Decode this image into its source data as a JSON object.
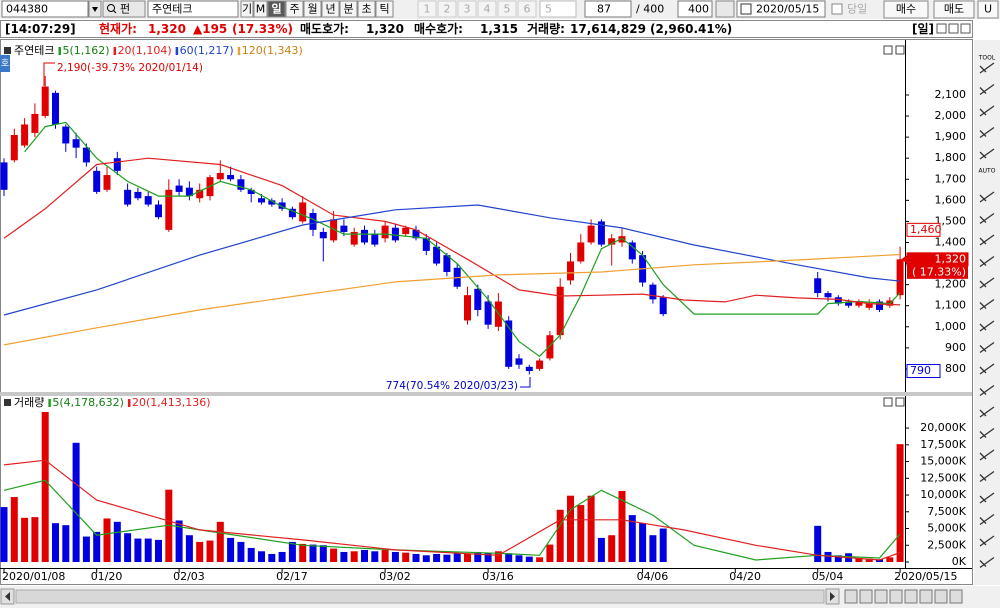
{
  "toolbar": {
    "code": "044380",
    "fund": "펀",
    "name": "주연테크",
    "period_buttons": [
      "기",
      "M",
      "일",
      "주",
      "월",
      "년",
      "분",
      "초",
      "틱"
    ],
    "number_buttons": [
      "1",
      "2",
      "3",
      "4",
      "5",
      "6"
    ],
    "interval": "5",
    "count": "87",
    "total": "/ 400",
    "max": "400",
    "date": "2020/05/15",
    "today": "당일",
    "buy": "매수",
    "sell": "매도",
    "user": "U"
  },
  "info_bar": {
    "time": "[14:07:29]",
    "price_label": "현재가:",
    "price": "1,320",
    "change": "▲195",
    "change_rate": "(17.33%)",
    "ask_label": "매도호가:",
    "ask": "1,320",
    "bid_label": "매수호가:",
    "bid": "1,315",
    "volume_label": "거래량:",
    "volume": "17,614,829",
    "volume_rate": "(2,960.41%)",
    "period": "[일]"
  },
  "side_tab": "호",
  "tool_bar": {
    "tool": "TOOL",
    "auto": "AUTO"
  },
  "chart_data": [
    {
      "type": "candlestick",
      "name": "주연테크",
      "up_color": "#e00000",
      "down_color": "#0000e0",
      "open": [
        1780,
        1790,
        1860,
        1920,
        2000,
        2110,
        1950,
        1890,
        1850,
        1740,
        1650,
        1800,
        1650,
        1640,
        1620,
        1580,
        1460,
        1670,
        1660,
        1610,
        1620,
        1700,
        1720,
        1700,
        1650,
        1610,
        1600,
        1590,
        1560,
        1500,
        1540,
        1450,
        1410,
        1480,
        1390,
        1460,
        1440,
        1420,
        1470,
        1440,
        1460,
        1420,
        1380,
        1340,
        1280,
        1030,
        1180,
        1120,
        1000,
        1030,
        850,
        810,
        800,
        850,
        960,
        1220,
        1310,
        1400,
        1500,
        1390,
        1400,
        1400,
        1340,
        1200,
        1140,
        null,
        null,
        null,
        null,
        null,
        null,
        null,
        null,
        null,
        null,
        null,
        null,
        null,
        null,
        1230,
        1160,
        1140,
        1120,
        1100,
        1090,
        1120,
        1100,
        1150
      ],
      "high": [
        1800,
        1940,
        1990,
        2060,
        2190,
        2120,
        1960,
        1920,
        1870,
        1760,
        1760,
        1830,
        1680,
        1660,
        1640,
        1600,
        1700,
        1700,
        1690,
        1680,
        1720,
        1790,
        1760,
        1720,
        1660,
        1630,
        1610,
        1610,
        1570,
        1620,
        1560,
        1470,
        1550,
        1510,
        1470,
        1480,
        1460,
        1500,
        1490,
        1480,
        1480,
        1440,
        1400,
        1350,
        1300,
        1190,
        1200,
        1150,
        1160,
        1050,
        870,
        820,
        850,
        980,
        1230,
        1350,
        1440,
        1510,
        1510,
        1440,
        1470,
        1410,
        1360,
        1210,
        1150,
        null,
        null,
        null,
        null,
        null,
        null,
        null,
        null,
        null,
        null,
        null,
        null,
        null,
        null,
        1260,
        1170,
        1150,
        1130,
        1130,
        1130,
        1130,
        1140,
        1380
      ],
      "low": [
        1620,
        1780,
        1850,
        1900,
        1990,
        1940,
        1830,
        1800,
        1760,
        1630,
        1640,
        1720,
        1570,
        1600,
        1570,
        1510,
        1450,
        1620,
        1600,
        1590,
        1600,
        1690,
        1690,
        1640,
        1590,
        1580,
        1570,
        1550,
        1510,
        1490,
        1430,
        1310,
        1400,
        1430,
        1380,
        1390,
        1380,
        1400,
        1400,
        1430,
        1410,
        1340,
        1290,
        1240,
        1180,
        1010,
        1050,
        990,
        980,
        800,
        800,
        774,
        790,
        840,
        940,
        1200,
        1300,
        1390,
        1380,
        1290,
        1380,
        1300,
        1190,
        1110,
        1050,
        null,
        null,
        null,
        null,
        null,
        null,
        null,
        null,
        null,
        null,
        null,
        null,
        null,
        null,
        1140,
        1120,
        1100,
        1090,
        1090,
        1080,
        1070,
        1090,
        1130
      ],
      "close": [
        1650,
        1910,
        1960,
        2010,
        2140,
        1960,
        1870,
        1850,
        1780,
        1640,
        1720,
        1740,
        1580,
        1610,
        1580,
        1520,
        1650,
        1640,
        1620,
        1650,
        1710,
        1730,
        1700,
        1650,
        1630,
        1590,
        1580,
        1560,
        1520,
        1590,
        1460,
        1420,
        1510,
        1450,
        1450,
        1400,
        1390,
        1480,
        1410,
        1470,
        1420,
        1360,
        1300,
        1260,
        1190,
        1150,
        1080,
        1010,
        1120,
        810,
        820,
        790,
        840,
        960,
        1190,
        1310,
        1400,
        1480,
        1390,
        1420,
        1430,
        1320,
        1210,
        1130,
        1060,
        null,
        null,
        null,
        null,
        null,
        null,
        null,
        null,
        null,
        null,
        null,
        null,
        null,
        null,
        1160,
        1140,
        1110,
        1100,
        1120,
        1110,
        1080,
        1125,
        1320
      ],
      "ylim": [
        700,
        2340
      ],
      "yticks": [
        800,
        900,
        {
          "value": 1000,
          "label": "1,000"
        },
        {
          "value": 1100,
          "label": "1,100"
        },
        {
          "value": 1200,
          "label": "1,200"
        },
        {
          "value": 1300,
          "label": "1,300"
        },
        {
          "value": 1400,
          "label": "1,400"
        },
        {
          "value": 1500,
          "label": "1,500"
        },
        {
          "value": 1600,
          "label": "1,600"
        },
        {
          "value": 1700,
          "label": "1,700"
        },
        {
          "value": 1800,
          "label": "1,800"
        },
        {
          "value": 1900,
          "label": "1,900"
        },
        {
          "value": 2000,
          "label": "2,000"
        },
        {
          "value": 2100,
          "label": "2,100"
        }
      ],
      "series": [
        {
          "name": "5(1,162)",
          "color": "#1ea01e",
          "x": [
            2,
            4,
            6,
            9,
            12,
            15,
            18,
            21,
            24,
            27,
            30,
            33,
            37,
            41,
            44,
            47,
            50,
            52,
            54,
            56,
            58,
            60,
            62,
            64,
            67,
            79,
            80,
            83,
            86,
            87
          ],
          "values": [
            1830,
            1950,
            1970,
            1800,
            1690,
            1620,
            1620,
            1690,
            1650,
            1570,
            1510,
            1440,
            1440,
            1420,
            1300,
            1130,
            930,
            860,
            960,
            1150,
            1370,
            1420,
            1340,
            1200,
            1060,
            1060,
            1110,
            1120,
            1110,
            1162
          ]
        },
        {
          "name": "20(1,104)",
          "color": "#e02020",
          "x": [
            0,
            4,
            9,
            14,
            21,
            27,
            32,
            37,
            40,
            45,
            50,
            54,
            58,
            62,
            66,
            70,
            73,
            77,
            81,
            84,
            87
          ],
          "values": [
            1420,
            1560,
            1770,
            1800,
            1770,
            1670,
            1530,
            1500,
            1460,
            1320,
            1175,
            1146,
            1150,
            1155,
            1127,
            1118,
            1150,
            1137,
            1130,
            1110,
            1104
          ]
        },
        {
          "name": "60(1,217)",
          "color": "#2244cc",
          "x": [
            0,
            9,
            19,
            29,
            38,
            46,
            53,
            60,
            67,
            77,
            84,
            87
          ],
          "values": [
            1056,
            1175,
            1340,
            1483,
            1555,
            1578,
            1517,
            1469,
            1388,
            1294,
            1232,
            1217
          ]
        },
        {
          "name": "120(1,343)",
          "color": "#f0a030",
          "x": [
            0,
            9,
            19,
            29,
            38,
            48,
            58,
            67,
            77,
            87
          ],
          "values": [
            914,
            995,
            1080,
            1151,
            1213,
            1246,
            1260,
            1294,
            1317,
            1343
          ]
        }
      ],
      "annotations": [
        "2,190(-39.73% 2020/01/14)",
        "774(70.54% 2020/03/23)"
      ],
      "markers": [
        {
          "value": 1460,
          "label": "1,460"
        },
        {
          "value": 1320,
          "label": "1,320"
        },
        790
      ],
      "marker_note": "( 17.33%)"
    },
    {
      "type": "bar",
      "name": "거래량",
      "categories": [
        "2020/01/08",
        null,
        null,
        null,
        null,
        null,
        null,
        null,
        null,
        "01/20",
        null,
        null,
        null,
        null,
        null,
        null,
        null,
        "02/03",
        null,
        null,
        null,
        null,
        null,
        null,
        null,
        null,
        null,
        "02/17",
        null,
        null,
        null,
        null,
        null,
        null,
        null,
        null,
        null,
        "03/02",
        null,
        null,
        null,
        null,
        null,
        null,
        null,
        null,
        null,
        "03/16",
        null,
        null,
        null,
        null,
        null,
        null,
        null,
        null,
        null,
        null,
        null,
        null,
        null,
        null,
        "04/06",
        null,
        null,
        null,
        null,
        null,
        null,
        null,
        null,
        "04/20",
        null,
        null,
        null,
        null,
        null,
        null,
        null,
        "05/04",
        null,
        null,
        null,
        null,
        null,
        null,
        null,
        "2020/05/15"
      ],
      "values": [
        8200,
        9700,
        6600,
        6700,
        22400,
        5800,
        5500,
        17800,
        3800,
        4500,
        6500,
        6000,
        4300,
        3500,
        3500,
        3300,
        10800,
        6200,
        4000,
        3000,
        3200,
        6000,
        3600,
        3000,
        2100,
        1600,
        1200,
        1500,
        3000,
        2700,
        2600,
        2500,
        2000,
        1500,
        1600,
        1800,
        1600,
        1800,
        1500,
        1400,
        1200,
        1000,
        1200,
        1100,
        1300,
        1200,
        1500,
        1400,
        1600,
        1300,
        1000,
        800,
        700,
        2600,
        7800,
        9900,
        8500,
        9900,
        3600,
        4000,
        10600,
        7000,
        5800,
        4000,
        5000,
        null,
        null,
        null,
        null,
        null,
        null,
        null,
        null,
        null,
        null,
        null,
        null,
        null,
        null,
        5400,
        1500,
        1000,
        1300,
        600,
        500,
        400,
        700,
        17600
      ],
      "ylim": [
        0,
        23400
      ],
      "yticks": [
        {
          "value": 0,
          "label": "0K"
        },
        {
          "value": 2500,
          "label": "2,500K"
        },
        {
          "value": 5000,
          "label": "5,000K"
        },
        {
          "value": 7500,
          "label": "7,500K"
        },
        {
          "value": 10000,
          "label": "10,000K"
        },
        {
          "value": 12500,
          "label": "12,500K"
        },
        {
          "value": 15000,
          "label": "15,000K"
        },
        {
          "value": 17500,
          "label": "17,500K"
        },
        {
          "value": 20000,
          "label": "20,000K"
        }
      ],
      "series": [
        {
          "name": "5(4,178,632)",
          "color": "#1ea01e",
          "x": [
            0,
            4,
            9,
            16,
            19,
            29,
            38,
            48,
            52,
            55,
            58,
            63,
            67,
            73,
            79,
            85,
            87
          ],
          "values": [
            10700,
            12200,
            4000,
            5500,
            4800,
            2500,
            1800,
            1300,
            1000,
            7800,
            10700,
            7000,
            2500,
            300,
            1000,
            600,
            4179
          ]
        },
        {
          "name": "20(1,413,136)",
          "color": "#e02020",
          "x": [
            0,
            4,
            9,
            19,
            29,
            38,
            48,
            54,
            60,
            66,
            73,
            79,
            85,
            87
          ],
          "values": [
            14500,
            15200,
            9250,
            4800,
            3300,
            1800,
            1000,
            6300,
            6300,
            4800,
            2500,
            1000,
            300,
            1413
          ]
        }
      ]
    }
  ]
}
